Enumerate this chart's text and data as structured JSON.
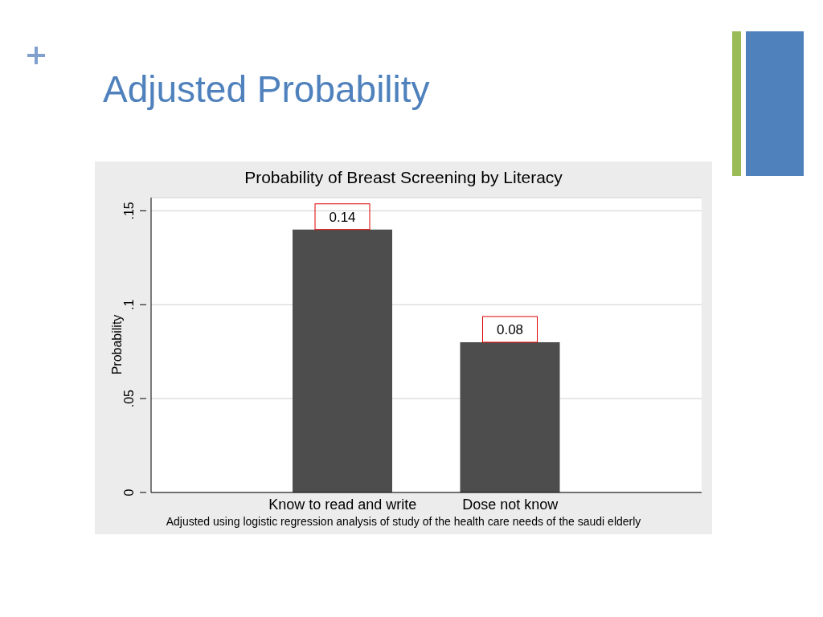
{
  "chart_data": {
    "type": "bar",
    "title": "Adjusted Probability",
    "subtitle": "Probability of Breast Screening by Literacy",
    "ylabel": "Probability",
    "categories": [
      "Know to read and write",
      "Dose not know"
    ],
    "values": [
      0.14,
      0.08
    ],
    "color": "#4d4d4d",
    "data_labels": true,
    "ylim": [
      0,
      0.157
    ],
    "yticks": [
      0,
      {
        "value": 0.05,
        "label": ".05"
      },
      {
        "value": 0.1,
        "label": ".1"
      },
      {
        "value": 0.15,
        "label": ".15"
      }
    ],
    "grid": "y",
    "legend": false,
    "annotations": [
      "Adjusted using logistic regression analysis of study of the health care needs of the saudi elderly"
    ]
  }
}
